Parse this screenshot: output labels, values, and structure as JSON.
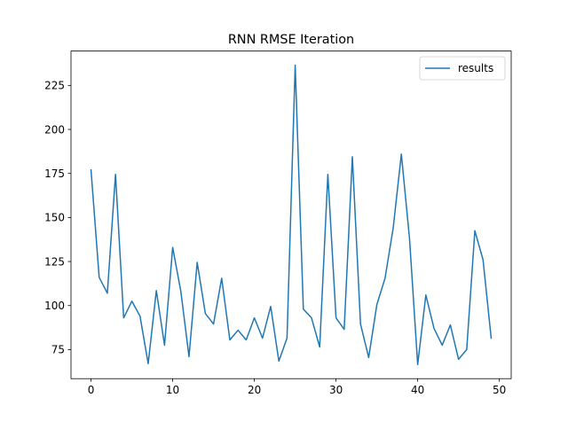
{
  "chart_data": {
    "type": "line",
    "title": "RNN RMSE Iteration",
    "xlabel": "",
    "ylabel": "",
    "xlim": [
      -2.45,
      51.45
    ],
    "ylim": [
      58.5,
      244.5
    ],
    "xticks": [
      0,
      10,
      20,
      30,
      40,
      50
    ],
    "yticks": [
      75,
      100,
      125,
      150,
      175,
      200,
      225
    ],
    "grid": false,
    "legend_position": "top-right",
    "series": [
      {
        "name": "results",
        "color": "#1f77b4",
        "x": [
          0,
          1,
          2,
          3,
          4,
          5,
          6,
          7,
          8,
          9,
          10,
          11,
          12,
          13,
          14,
          15,
          16,
          17,
          18,
          19,
          20,
          21,
          22,
          23,
          24,
          25,
          26,
          27,
          28,
          29,
          30,
          31,
          32,
          33,
          34,
          35,
          36,
          37,
          38,
          39,
          40,
          41,
          42,
          43,
          44,
          45,
          46,
          47,
          48,
          49
        ],
        "y": [
          177,
          116,
          107,
          174.5,
          93,
          102.5,
          94,
          67,
          108.5,
          77.5,
          133,
          108,
          71,
          124.5,
          95.5,
          89.5,
          115.5,
          80.5,
          86,
          80.5,
          93,
          81.5,
          99.5,
          68.5,
          81.5,
          236.5,
          98,
          93,
          76.5,
          174.5,
          93,
          86.5,
          184.5,
          89.5,
          70.5,
          100.5,
          115.5,
          144,
          186,
          138,
          66.5,
          106,
          87,
          77.5,
          89,
          69.5,
          75,
          142.5,
          126,
          81.5
        ]
      }
    ]
  }
}
